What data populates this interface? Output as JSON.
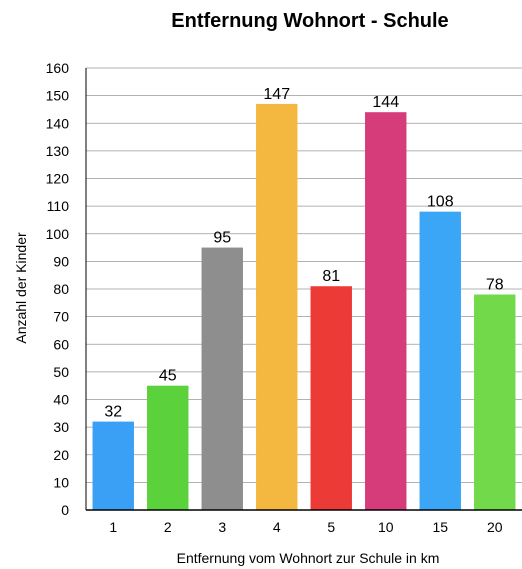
{
  "chart_data": {
    "type": "bar",
    "title": "Entfernung Wohnort - Schule",
    "xlabel": "Entfernung vom Wohnort zur Schule in km",
    "ylabel": "Anzahl der Kinder",
    "categories": [
      "1",
      "2",
      "3",
      "4",
      "5",
      "10",
      "15",
      "20"
    ],
    "values": [
      32,
      45,
      95,
      147,
      81,
      144,
      108,
      78
    ],
    "colors": [
      "#3aa0f5",
      "#5bd13c",
      "#8e8e8e",
      "#f4b740",
      "#ec3a36",
      "#d63c7a",
      "#3aa6f5",
      "#72d94a"
    ],
    "ylim": [
      0,
      160
    ],
    "yticks": [
      0,
      10,
      20,
      30,
      40,
      50,
      60,
      70,
      80,
      90,
      100,
      110,
      120,
      130,
      140,
      150,
      160
    ],
    "grid": true,
    "legend": "none",
    "data_labels": true
  }
}
